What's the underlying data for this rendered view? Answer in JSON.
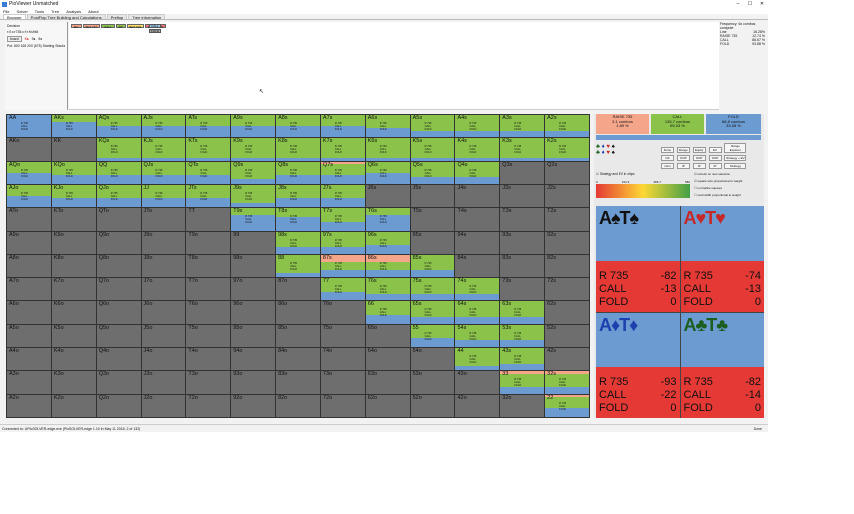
{
  "window": {
    "title": "PioViewer Unmatched",
    "controls": [
      "–",
      "☐",
      "✕"
    ]
  },
  "menu": [
    "File",
    "Solver",
    "Tools",
    "Tree",
    "Analysis",
    "About"
  ],
  "tabs": [
    "Browser",
    "PostFlop Tree Building and Calculations",
    "Preflop",
    "Tree information"
  ],
  "left": {
    "decision": "Decision",
    "line": "r:0:c:r735:c:f:r:Ks9s5",
    "board_btn": "board",
    "pot": "Pot: 800 165 200 (675) Starting Stacks 85"
  },
  "tree_buttons": [
    {
      "label": "Bet",
      "color": "#f4a58a"
    },
    {
      "label": "BET 797",
      "color": "#f4a58a"
    },
    {
      "label": "CALL",
      "color": "#8bc34a"
    },
    {
      "label": "R3",
      "color": "#8bc34a"
    },
    {
      "label": "BET 639",
      "color": "#ffe066"
    },
    {
      "label": "RAISE 735",
      "color": "#e57373"
    }
  ],
  "tree_line": [
    "CALL",
    "FOLD"
  ],
  "freq": {
    "title": "Frequency: 6x combos compute",
    "rows": [
      [
        "Line",
        "16.28%"
      ],
      [
        "",
        ""
      ],
      [
        "RAISE 735",
        "12.74 %"
      ],
      [
        "CALL",
        "86.67 %"
      ],
      [
        "FOLD",
        "93.88 %"
      ]
    ]
  },
  "hands": [
    "AA",
    "AKs",
    "AQs",
    "AJs",
    "ATs",
    "A9s",
    "A8s",
    "A7s",
    "A6s",
    "A5s",
    "A4s",
    "A3s",
    "A2s",
    "AKo",
    "KK",
    "KQs",
    "KJs",
    "KTs",
    "K9s",
    "K8s",
    "K7s",
    "K6s",
    "K5s",
    "K4s",
    "K3s",
    "K2s",
    "AQo",
    "KQo",
    "QQ",
    "QJs",
    "QTs",
    "Q9s",
    "Q8s",
    "Q7s",
    "Q6s",
    "Q5s",
    "Q4s",
    "Q3s",
    "Q2s",
    "AJo",
    "KJo",
    "QJo",
    "JJ",
    "JTs",
    "J9s",
    "J8s",
    "J7s",
    "J6s",
    "J5s",
    "J4s",
    "J3s",
    "J2s",
    "ATo",
    "KTo",
    "QTo",
    "JTo",
    "TT",
    "T9s",
    "T8s",
    "T7s",
    "T6s",
    "T5s",
    "T4s",
    "T3s",
    "T2s",
    "A9o",
    "K9o",
    "Q9o",
    "J9o",
    "T9o",
    "99",
    "98s",
    "97s",
    "96s",
    "95s",
    "94s",
    "93s",
    "92s",
    "A8o",
    "K8o",
    "Q8o",
    "J8o",
    "T8o",
    "98o",
    "88",
    "87s",
    "86s",
    "85s",
    "84s",
    "83s",
    "82s",
    "A7o",
    "K7o",
    "Q7o",
    "J7o",
    "T7o",
    "97o",
    "87o",
    "77",
    "76s",
    "75s",
    "74s",
    "73s",
    "72s",
    "A6o",
    "K6o",
    "Q6o",
    "J6o",
    "T6o",
    "96o",
    "86o",
    "76o",
    "66",
    "65s",
    "64s",
    "63s",
    "62s",
    "A5o",
    "K5o",
    "Q5o",
    "J5o",
    "T5o",
    "95o",
    "85o",
    "75o",
    "65o",
    "55",
    "54s",
    "53s",
    "52s",
    "A4o",
    "K4o",
    "Q4o",
    "J4o",
    "T4o",
    "94o",
    "84o",
    "74o",
    "64o",
    "54o",
    "44",
    "43s",
    "42s",
    "A3o",
    "K3o",
    "Q3o",
    "J3o",
    "T3o",
    "93o",
    "83o",
    "73o",
    "63o",
    "53o",
    "43o",
    "33",
    "32s",
    "A2o",
    "K2o",
    "Q2o",
    "J2o",
    "T2o",
    "92o",
    "82o",
    "72o",
    "62o",
    "52o",
    "42o",
    "32o",
    "22"
  ],
  "cell_lines": [
    "R 735",
    "CALL",
    "FOLD"
  ],
  "actions": [
    {
      "label": "RAISE 735",
      "combos": "3.1 combos",
      "pct": "1.89 %",
      "color": "#f4a58a"
    },
    {
      "label": "CALL",
      "combos": "135.7 combos",
      "pct": "65.03 %",
      "color": "#8bc34a"
    },
    {
      "label": "FOLD",
      "combos": "68.8 combos",
      "pct": "33.08 %",
      "color": "#6b9bd1"
    }
  ],
  "settings": {
    "headers": [
      "Done",
      "Range",
      "Equity",
      "EV"
    ],
    "row1": [
      "NA",
      "OOP",
      "OOP",
      "OOP"
    ],
    "row2": [
      "norm",
      "IP",
      "IP",
      "IP"
    ],
    "extra": [
      "Range Explorer",
      "Strategy + EV",
      "Strategy"
    ]
  },
  "strategy_label": "Strategy and EV in chips",
  "scale": [
    "0",
    "193.3",
    "386.7",
    "580"
  ],
  "checks": [
    "refresh on new selection",
    "square size proportional to weight",
    "normalize squares",
    "card width proportional to weight"
  ],
  "suit_squares": [
    {
      "label": "A♠T♠",
      "color": "#111",
      "r": "-82",
      "call": "-13",
      "fold": "0",
      "blue": 0.52
    },
    {
      "label": "A♥T♥",
      "color": "#c62828",
      "r": "-74",
      "call": "-13",
      "fold": "0",
      "blue": 0.52
    },
    {
      "label": "A♦T♦",
      "color": "#1e40af",
      "r": "-93",
      "call": "-22",
      "fold": "0",
      "blue": 0.52
    },
    {
      "label": "A♣T♣",
      "color": "#1b5e20",
      "r": "-82",
      "call": "-14",
      "fold": "0",
      "blue": 0.52
    }
  ],
  "suit_prefix": {
    "r": "R 735",
    "call": "CALL",
    "fold": "FOLD"
  },
  "status": {
    "left": "Connected to: UPioSOLVER-edge.exe (PioSOLVER-edge 1.10 fn May 11 2018, 2 of 132)",
    "right": "Done"
  }
}
